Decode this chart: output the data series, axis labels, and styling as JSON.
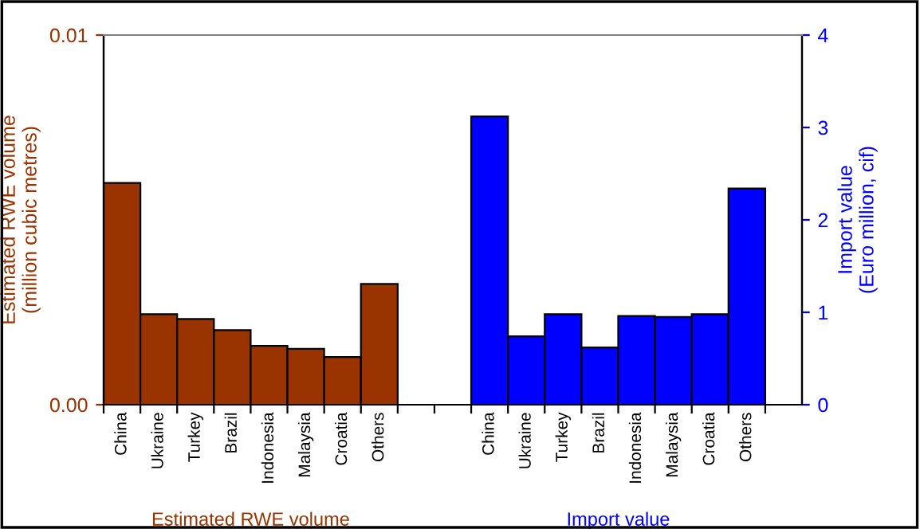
{
  "chart_data": {
    "type": "bar",
    "categories": [
      "China",
      "Ukraine",
      "Turkey",
      "Brazil",
      "Indonesia",
      "Malaysia",
      "Croatia",
      "Others",
      null,
      null,
      "China",
      "Ukraine",
      "Turkey",
      "Brazil",
      "Indonesia",
      "Malaysia",
      "Croatia",
      "Others"
    ],
    "series": [
      {
        "name": "Estimated RWE volume",
        "color": "#993300",
        "values": [
          0.006,
          0.00245,
          0.00232,
          0.00202,
          0.00159,
          0.00151,
          0.00129,
          0.00327,
          null,
          null,
          null,
          null,
          null,
          null,
          null,
          null,
          null,
          null
        ]
      },
      {
        "name": "Import value",
        "color": "#0000ff",
        "axis": "y2",
        "values": [
          null,
          null,
          null,
          null,
          null,
          null,
          null,
          null,
          null,
          null,
          3.12,
          0.74,
          0.98,
          0.62,
          0.96,
          0.95,
          0.98,
          2.34
        ]
      }
    ],
    "ylabel": "Estimated RWE volume\n(million cubic metres)",
    "y2label": "Import value\n(Euro million, cif)",
    "ylim": [
      0,
      0.01
    ],
    "yticks": [
      {
        "value": 0,
        "label": "0.00"
      },
      {
        "value": 0.01,
        "label": "0.01"
      }
    ],
    "y2lim": [
      0,
      4
    ],
    "y2ticks": [
      0,
      1,
      2,
      3,
      4
    ],
    "grid": false,
    "legend": false
  }
}
